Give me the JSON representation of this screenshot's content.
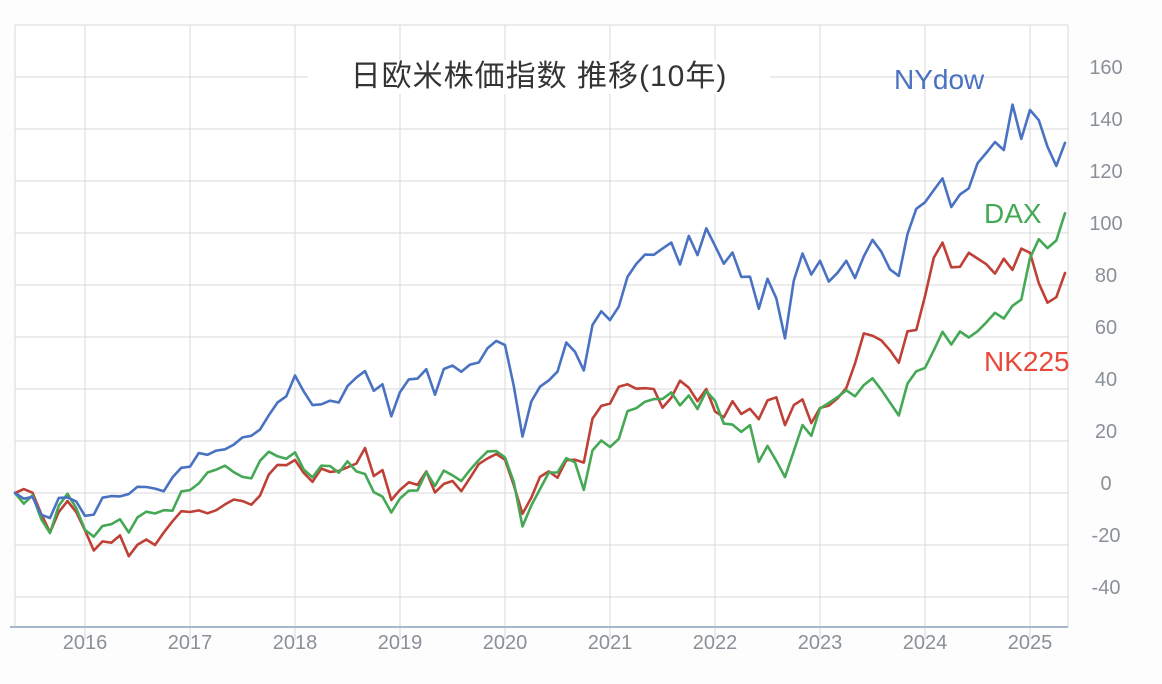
{
  "title": "日欧米株価指数 推移(10年)",
  "chart_data": {
    "type": "line",
    "title": "日欧米株価指数 推移(10年)",
    "subtitle": "",
    "x_start": "2015-05",
    "x_end": "2025-05",
    "x_interval": "monthly",
    "x_tick_labels": [
      "2016",
      "2017",
      "2018",
      "2019",
      "2020",
      "2021",
      "2022",
      "2023",
      "2024",
      "2025"
    ],
    "y_ticks": [
      160,
      140,
      120,
      100,
      80,
      60,
      40,
      20,
      0,
      -20,
      -40
    ],
    "ylim": [
      -52,
      180
    ],
    "grid": true,
    "legend_position": "inline-labels-right",
    "axis_text_color": "#8a9097",
    "gridline_color": "#d8d8d8",
    "axis_line_color": "#a9b8cc",
    "series": [
      {
        "name": "NYdow",
        "color": "#4a72c2",
        "values": [
          0,
          -2.2,
          -1.5,
          -8.4,
          -9.6,
          -1.9,
          -1.7,
          -3.3,
          -8.8,
          -8.3,
          -1.8,
          -1.2,
          -1.3,
          -0.4,
          2.4,
          2.3,
          1.7,
          0.7,
          6.0,
          9.7,
          10.1,
          15.4,
          14.7,
          16.3,
          16.8,
          18.6,
          21.4,
          22.0,
          24.4,
          29.9,
          34.8,
          37.2,
          45.2,
          39.0,
          33.8,
          34.1,
          35.5,
          34.8,
          41.1,
          44.4,
          46.9,
          39.3,
          41.8,
          29.5,
          38.8,
          43.7,
          44.0,
          47.6,
          37.8,
          47.7,
          49.0,
          46.6,
          49.4,
          50.2,
          55.7,
          58.5,
          56.9,
          41.1,
          21.7,
          35.2,
          40.9,
          43.3,
          46.7,
          57.9,
          54.3,
          47.1,
          64.6,
          69.9,
          66.5,
          71.7,
          83.1,
          88.1,
          91.7,
          91.6,
          94.0,
          96.3,
          87.9,
          98.9,
          91.5,
          101.8,
          95.1,
          88.2,
          92.5,
          83.1,
          83.2,
          70.9,
          82.4,
          74.9,
          59.5,
          81.7,
          92.1,
          84.0,
          89.3,
          81.3,
          84.7,
          89.3,
          82.7,
          91.0,
          97.4,
          92.8,
          86.0,
          83.5,
          99.6,
          109.3,
          111.8,
          116.5,
          121.0,
          110.0,
          114.8,
          117.2,
          126.8,
          130.8,
          135.0,
          131.9,
          149.4,
          136.2,
          147.3,
          143.4,
          133.2,
          125.8,
          134.7
        ]
      },
      {
        "name": "DAX",
        "color": "#45a855",
        "values": [
          0,
          -4.1,
          -0.9,
          -10.1,
          -15.4,
          -4.9,
          -0.3,
          -5.9,
          -14.2,
          -16.8,
          -12.7,
          -12.0,
          -10.1,
          -15.2,
          -9.4,
          -7.2,
          -7.9,
          -6.6,
          -6.8,
          0.6,
          1.1,
          3.7,
          7.9,
          9.0,
          10.5,
          8.0,
          6.2,
          5.6,
          12.4,
          15.9,
          14.1,
          13.2,
          15.6,
          9.0,
          6.0,
          10.5,
          10.4,
          7.8,
          12.2,
          8.3,
          7.3,
          0.3,
          -1.4,
          -7.5,
          -2.1,
          0.9,
          1.0,
          8.1,
          2.7,
          8.6,
          6.8,
          4.6,
          8.9,
          12.7,
          16.0,
          16.1,
          13.7,
          4.2,
          -12.9,
          -4.8,
          1.5,
          7.9,
          7.9,
          13.4,
          11.8,
          1.2,
          16.4,
          20.2,
          17.7,
          20.8,
          31.5,
          32.6,
          35.1,
          36.1,
          36.2,
          38.7,
          33.7,
          37.5,
          32.3,
          39.2,
          35.5,
          26.7,
          26.3,
          23.5,
          26.1,
          12.0,
          18.1,
          12.4,
          6.1,
          16.1,
          26.1,
          22.0,
          32.5,
          34.6,
          36.9,
          39.5,
          37.2,
          41.5,
          44.1,
          39.7,
          34.8,
          29.8,
          42.1,
          46.8,
          48.1,
          54.9,
          62.0,
          57.1,
          62.1,
          59.8,
          62.2,
          65.6,
          69.3,
          67.1,
          72.0,
          74.4,
          90.4,
          97.6,
          94.2,
          97.1,
          107.6
        ]
      },
      {
        "name": "NK225",
        "color": "#bf4036",
        "values": [
          0,
          1.5,
          0.1,
          -8.1,
          -15.1,
          -7.3,
          -3.1,
          -7.4,
          -14.4,
          -22.1,
          -18.6,
          -19.1,
          -16.3,
          -24.3,
          -19.9,
          -17.9,
          -20.0,
          -15.2,
          -10.9,
          -7.0,
          -7.3,
          -6.7,
          -7.8,
          -6.6,
          -4.4,
          -2.5,
          -3.1,
          -4.5,
          -1.0,
          7.1,
          10.8,
          10.7,
          12.7,
          7.7,
          4.3,
          9.4,
          8.1,
          8.5,
          9.9,
          11.3,
          17.3,
          6.5,
          8.8,
          -2.7,
          1.2,
          4.1,
          3.1,
          8.3,
          0.2,
          3.5,
          4.6,
          0.7,
          5.8,
          11.1,
          13.3,
          15.0,
          12.8,
          3.0,
          -8.0,
          -1.8,
          6.2,
          8.3,
          5.9,
          12.6,
          12.8,
          11.7,
          28.6,
          33.5,
          34.4,
          40.9,
          41.8,
          40.1,
          40.3,
          40.0,
          32.8,
          36.6,
          43.2,
          40.5,
          35.3,
          40.0,
          31.4,
          29.1,
          35.3,
          30.4,
          32.4,
          28.4,
          35.6,
          36.8,
          26.1,
          33.8,
          36.0,
          26.9,
          32.7,
          33.6,
          36.4,
          40.4,
          49.8,
          61.4,
          60.5,
          58.7,
          54.9,
          50.1,
          62.2,
          62.7,
          75.7,
          90.5,
          96.3,
          86.8,
          87.0,
          92.4,
          90.2,
          88.0,
          84.4,
          90.1,
          85.8,
          94.0,
          92.4,
          80.7,
          73.2,
          75.3,
          84.6
        ]
      }
    ]
  }
}
